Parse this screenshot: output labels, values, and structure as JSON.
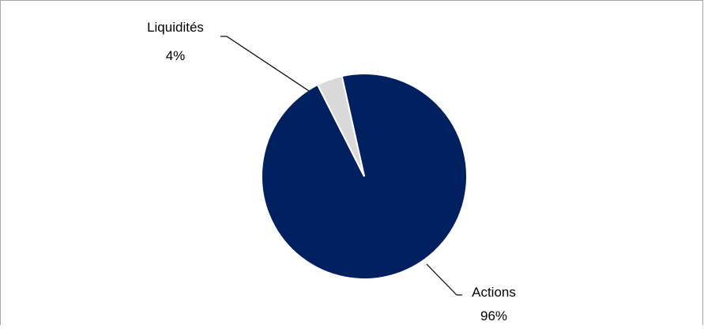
{
  "chart_data": {
    "type": "pie",
    "title": "",
    "slices": [
      {
        "label": "Actions",
        "value": 96,
        "percent_label": "96%"
      },
      {
        "label": "Liquidités",
        "value": 4,
        "percent_label": "4%"
      }
    ],
    "start_angle_deg": 0,
    "direction": "clockwise",
    "legend": "none",
    "data_labels": "outside-with-leader-lines"
  },
  "colors": {
    "slice_actions": "#002060",
    "slice_liquidites": "#D9D9D9",
    "slice_border": "#FFFFFF",
    "frame_border": "#A6A6A6",
    "leader_line": "#000000"
  }
}
